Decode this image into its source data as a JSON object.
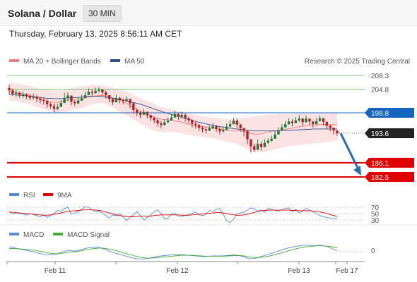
{
  "header": {
    "title": "Solana / Dollar",
    "timeframe": "30 MIN"
  },
  "datetime": "Thursday, February 13, 2025 8:56:11 AM CET",
  "colors": {
    "bollinger": "#f08080",
    "ma50": "#2c4f8c",
    "resistance": "#7fc97f",
    "pivot": "#1565c0",
    "support": "#e00000",
    "current": "#222222",
    "rsi": "#5b8bd6",
    "rsi_ma": "#e00000",
    "macd": "#5b8bd6",
    "macd_signal": "#44aa33",
    "arrow": "#2b6cb0"
  },
  "legend": {
    "items": [
      {
        "label": "MA 20 + Bollinger Bands",
        "color": "#f08080"
      },
      {
        "label": "MA 50",
        "color": "#2c4f8c"
      }
    ],
    "credit": "Research © 2025 Trading Central"
  },
  "rsi_legend": [
    {
      "label": "RSI",
      "color": "#5b8bd6"
    },
    {
      "label": "9MA",
      "color": "#e00000"
    }
  ],
  "macd_legend": [
    {
      "label": "MACD",
      "color": "#5b8bd6"
    },
    {
      "label": "MACD Signal",
      "color": "#44aa33"
    }
  ],
  "chart_data": [
    {
      "type": "candlestick",
      "title": "Solana / Dollar",
      "ylim": [
        180,
        210
      ],
      "x_tick_labels": [
        "Feb 11",
        "Feb 12",
        "Feb 13",
        "Feb 17"
      ],
      "close": [
        204.5,
        203.6,
        203.9,
        203.2,
        203.5,
        203.0,
        202.6,
        202.9,
        202.4,
        202.0,
        201.8,
        201.0,
        200.5,
        199.8,
        200.3,
        201.3,
        202.5,
        203.2,
        201.6,
        201.2,
        201.9,
        202.5,
        203.3,
        204.1,
        203.8,
        204.4,
        204.7,
        204.0,
        203.3,
        202.3,
        201.5,
        202.6,
        202.0,
        201.8,
        202.3,
        201.2,
        199.5,
        198.9,
        198.3,
        199.0,
        198.2,
        197.5,
        196.9,
        196.1,
        195.7,
        196.4,
        196.8,
        197.6,
        198.5,
        197.8,
        198.3,
        197.4,
        196.9,
        196.0,
        195.7,
        195.0,
        194.6,
        194.3,
        194.9,
        195.4,
        194.7,
        194.1,
        194.5,
        195.3,
        195.9,
        196.8,
        195.8,
        194.9,
        194.2,
        192.1,
        190.3,
        189.4,
        190.9,
        190.1,
        191.2,
        191.7,
        192.2,
        193.3,
        194.3,
        195.1,
        195.9,
        196.6,
        196.2,
        196.9,
        197.3,
        196.4,
        197.3,
        196.6,
        195.9,
        196.7,
        197.4,
        196.5,
        195.5,
        195.0,
        194.3,
        193.6
      ],
      "high": [
        206.0,
        205.0,
        204.6,
        204.2,
        204.2,
        203.8,
        203.6,
        203.7,
        203.3,
        202.9,
        202.6,
        202.2,
        201.4,
        201.2,
        201.1,
        202.1,
        203.9,
        204.0,
        203.0,
        202.0,
        202.7,
        203.4,
        204.2,
        205.0,
        204.8,
        205.2,
        205.3,
        204.8,
        204.5,
        203.2,
        202.6,
        203.4,
        202.9,
        202.5,
        203.0,
        202.4,
        201.5,
        199.9,
        199.2,
        199.8,
        199.2,
        198.4,
        197.8,
        197.4,
        196.7,
        197.1,
        197.6,
        198.4,
        199.4,
        198.8,
        199.1,
        198.6,
        197.8,
        197.2,
        196.5,
        196.0,
        195.4,
        195.2,
        195.6,
        196.3,
        195.7,
        195.2,
        195.1,
        196.1,
        196.9,
        197.5,
        197.3,
        196.0,
        195.0,
        194.3,
        191.6,
        191.0,
        192.0,
        191.5,
        192.1,
        192.4,
        193.0,
        194.2,
        195.1,
        195.9,
        196.7,
        197.4,
        197.2,
        197.7,
        198.2,
        197.5,
        198.1,
        197.4,
        196.7,
        197.5,
        198.1,
        197.5,
        196.6,
        195.7,
        195.0,
        194.4
      ],
      "low": [
        203.5,
        203.1,
        202.8,
        202.6,
        202.5,
        202.3,
        202.0,
        202.1,
        201.5,
        201.2,
        200.9,
        200.1,
        199.8,
        199.0,
        199.5,
        200.6,
        201.6,
        201.8,
        200.7,
        200.5,
        200.9,
        201.8,
        202.6,
        203.3,
        203.0,
        203.6,
        203.9,
        203.2,
        202.4,
        201.5,
        200.8,
        201.4,
        201.2,
        201.0,
        201.6,
        199.9,
        198.6,
        198.0,
        197.5,
        198.3,
        197.4,
        196.7,
        196.1,
        195.3,
        194.9,
        195.6,
        196.1,
        196.9,
        197.6,
        197.0,
        197.4,
        196.5,
        196.1,
        195.1,
        194.8,
        194.2,
        193.8,
        193.6,
        194.1,
        194.6,
        193.9,
        193.3,
        193.8,
        194.4,
        195.1,
        195.9,
        194.9,
        194.0,
        192.8,
        190.8,
        188.7,
        188.9,
        189.5,
        189.2,
        190.3,
        190.9,
        191.4,
        192.3,
        193.4,
        194.3,
        195.1,
        195.8,
        195.3,
        196.1,
        196.4,
        195.5,
        196.3,
        195.7,
        195.1,
        195.8,
        196.6,
        195.6,
        194.7,
        194.1,
        193.3,
        192.9
      ],
      "ma20": [
        204.2,
        204.1,
        204.0,
        203.8,
        203.6,
        203.4,
        203.2,
        202.9,
        202.6,
        202.3,
        202.0,
        201.8,
        201.6,
        201.5,
        201.5,
        201.6,
        201.8,
        202.0,
        202.1,
        202.2,
        202.3,
        202.4,
        202.6,
        202.8,
        203.0,
        203.1,
        203.2,
        203.2,
        203.1,
        202.9,
        202.6,
        202.3,
        202.0,
        201.6,
        201.2,
        200.7,
        200.2,
        199.7,
        199.2,
        198.8,
        198.4,
        198.0,
        197.7,
        197.4,
        197.2,
        197.1,
        197.0,
        196.9,
        196.8,
        196.6,
        196.4,
        196.1,
        195.9,
        195.7,
        195.5,
        195.4,
        195.3,
        195.2,
        195.1,
        194.9,
        194.8,
        194.6,
        194.5,
        194.4,
        194.3,
        194.3,
        194.3,
        194.2,
        194.1,
        193.9,
        193.6,
        193.4,
        193.4,
        193.5,
        193.7,
        193.9,
        194.1,
        194.2,
        194.3,
        194.4,
        194.6,
        194.8,
        194.9,
        195.1,
        195.3,
        195.4,
        195.5,
        195.6,
        195.6,
        195.7,
        195.8,
        195.8,
        195.9,
        195.8,
        195.8,
        195.7
      ],
      "bb_upper": [
        206.5,
        206.4,
        206.3,
        206.2,
        206.0,
        205.8,
        205.6,
        205.4,
        205.2,
        205.0,
        204.8,
        204.7,
        204.6,
        204.5,
        204.4,
        204.4,
        204.6,
        204.8,
        205.0,
        205.2,
        205.4,
        205.5,
        205.6,
        205.7,
        205.8,
        205.8,
        205.8,
        205.7,
        205.6,
        205.4,
        205.2,
        205.0,
        204.8,
        204.5,
        204.2,
        203.8,
        203.4,
        203.0,
        202.6,
        202.2,
        201.8,
        201.4,
        201.0,
        200.6,
        200.3,
        200.0,
        199.8,
        199.6,
        199.4,
        199.2,
        199.0,
        198.8,
        198.6,
        198.4,
        198.2,
        198.0,
        197.9,
        197.8,
        197.7,
        197.6,
        197.5,
        197.4,
        197.3,
        197.2,
        197.2,
        197.3,
        197.4,
        197.5,
        197.6,
        197.7,
        197.8,
        197.9,
        198.0,
        198.1,
        198.2,
        198.3,
        198.3,
        198.4,
        198.4,
        198.4,
        198.4,
        198.5,
        198.5,
        198.5,
        198.6,
        198.6,
        198.6,
        198.6,
        198.7,
        198.7,
        198.7,
        198.7,
        198.7,
        198.8,
        198.8,
        198.8
      ],
      "bb_lower": [
        201.9,
        201.8,
        201.7,
        201.5,
        201.3,
        201.1,
        200.9,
        200.6,
        200.3,
        200.0,
        199.7,
        199.4,
        199.2,
        199.0,
        198.9,
        198.9,
        199.0,
        199.2,
        199.4,
        199.6,
        199.8,
        200.0,
        200.3,
        200.6,
        200.9,
        201.1,
        201.2,
        201.2,
        201.0,
        200.6,
        200.1,
        199.6,
        199.1,
        198.6,
        198.1,
        197.6,
        197.1,
        196.6,
        196.0,
        195.5,
        195.0,
        194.6,
        194.3,
        194.1,
        193.9,
        193.9,
        193.9,
        193.9,
        193.9,
        193.8,
        193.6,
        193.4,
        193.2,
        193.0,
        192.9,
        192.8,
        192.7,
        192.6,
        192.5,
        192.3,
        192.1,
        191.9,
        191.7,
        191.5,
        191.3,
        191.1,
        190.8,
        190.4,
        190.0,
        189.5,
        189.0,
        188.8,
        188.7,
        188.8,
        188.9,
        189.1,
        189.3,
        189.5,
        189.7,
        189.9,
        190.1,
        190.3,
        190.4,
        190.5,
        190.6,
        190.7,
        190.8,
        190.9,
        191.0,
        191.1,
        191.2,
        191.3,
        191.4,
        191.5,
        191.6,
        191.7
      ],
      "ma50": [
        203.5,
        203.4,
        203.3,
        203.3,
        203.2,
        203.1,
        203.0,
        202.9,
        202.8,
        202.7,
        202.6,
        202.5,
        202.5,
        202.4,
        202.4,
        202.4,
        202.5,
        202.6,
        202.6,
        202.7,
        202.7,
        202.8,
        202.9,
        203.0,
        203.0,
        203.0,
        203.0,
        202.9,
        202.8,
        202.7,
        202.5,
        202.4,
        202.2,
        202.0,
        201.8,
        201.6,
        201.4,
        201.2,
        201.0,
        200.7,
        200.4,
        200.1,
        199.8,
        199.5,
        199.2,
        198.9,
        198.6,
        198.4,
        198.1,
        197.9,
        197.6,
        197.4,
        197.1,
        196.9,
        196.6,
        196.4,
        196.2,
        196.0,
        195.8,
        195.6,
        195.5,
        195.3,
        195.2,
        195.0,
        194.9,
        194.8,
        194.7,
        194.6,
        194.5,
        194.4,
        194.3,
        194.2,
        194.2,
        194.2,
        194.2,
        194.2,
        194.2,
        194.2,
        194.2,
        194.3,
        194.3,
        194.3,
        194.4,
        194.4,
        194.5,
        194.5,
        194.6,
        194.6,
        194.7,
        194.7,
        194.7,
        194.7,
        194.7,
        194.7,
        194.7,
        194.7
      ],
      "levels": [
        {
          "label": "208.3",
          "value": 208.3,
          "kind": "resistance"
        },
        {
          "label": "204.8",
          "value": 204.8,
          "kind": "resistance"
        },
        {
          "label": "198.8",
          "value": 198.8,
          "kind": "pivot"
        },
        {
          "label": "193.6",
          "value": 193.6,
          "kind": "current"
        },
        {
          "label": "186.1",
          "value": 186.1,
          "kind": "support"
        },
        {
          "label": "182.5",
          "value": 182.5,
          "kind": "support"
        }
      ],
      "forecast_arrow": {
        "from": 193.6,
        "to": 182.5
      }
    },
    {
      "type": "line",
      "series": [
        {
          "name": "RSI",
          "values": [
            58,
            48,
            52,
            51,
            49,
            45,
            50,
            47,
            44,
            40,
            46,
            38,
            44,
            50,
            60,
            57,
            66,
            70,
            48,
            52,
            56,
            64,
            72,
            70,
            62,
            57,
            58,
            52,
            44,
            36,
            46,
            43,
            50,
            40,
            28,
            38,
            46,
            56,
            44,
            30,
            38,
            45,
            56,
            62,
            50,
            34,
            36,
            48,
            50,
            42,
            41,
            44,
            47,
            51,
            55,
            46,
            44,
            48,
            60,
            56,
            64,
            66,
            48,
            28,
            22,
            33,
            50,
            52,
            54,
            62,
            68,
            65,
            58,
            62,
            54,
            66,
            64,
            60,
            58,
            63,
            66,
            68,
            56,
            64,
            52,
            58,
            66,
            62,
            56,
            50,
            44,
            40,
            38,
            36,
            34,
            33
          ]
        },
        {
          "name": "9MA",
          "values": [
            55,
            54,
            53,
            52,
            51,
            50,
            49,
            48,
            47,
            46,
            45,
            45,
            46,
            48,
            50,
            52,
            55,
            57,
            58,
            59,
            60,
            61,
            62,
            62,
            62,
            61,
            60,
            58,
            55,
            52,
            49,
            46,
            44,
            42,
            41,
            40,
            40,
            41,
            42,
            42,
            41,
            42,
            44,
            45,
            46,
            46,
            46,
            46,
            46,
            46,
            45,
            45,
            45,
            46,
            47,
            48,
            49,
            50,
            51,
            52,
            53,
            53,
            52,
            50,
            48,
            46,
            45,
            45,
            46,
            48,
            51,
            54,
            57,
            59,
            60,
            61,
            61,
            61,
            61,
            61,
            61,
            61,
            60,
            60,
            59,
            59,
            59,
            59,
            58,
            57,
            55,
            53,
            50,
            47,
            44,
            41
          ]
        }
      ],
      "ylim": [
        20,
        80
      ],
      "y_tick_labels": [
        "70",
        "50",
        "30"
      ]
    },
    {
      "type": "line",
      "series": [
        {
          "name": "MACD",
          "values": [
            1.5,
            1.4,
            1.0,
            0.8,
            0.6,
            0.4,
            0.2,
            0.0,
            -0.3,
            -0.6,
            -0.8,
            -1.0,
            -1.0,
            -0.9,
            -0.6,
            -0.3,
            0.1,
            0.4,
            0.3,
            0.2,
            0.4,
            0.7,
            1.0,
            1.2,
            1.3,
            1.4,
            1.3,
            1.0,
            0.6,
            0.2,
            -0.2,
            -0.5,
            -0.8,
            -1.1,
            -1.4,
            -1.7,
            -2.0,
            -2.2,
            -2.3,
            -2.3,
            -2.1,
            -1.9,
            -1.7,
            -1.5,
            -1.3,
            -1.2,
            -1.1,
            -1.0,
            -0.9,
            -0.9,
            -0.9,
            -1.0,
            -1.1,
            -1.2,
            -1.3,
            -1.4,
            -1.5,
            -1.5,
            -1.4,
            -1.3,
            -1.3,
            -1.3,
            -1.3,
            -1.2,
            -1.1,
            -1.0,
            -1.1,
            -1.3,
            -1.6,
            -2.0,
            -2.2,
            -2.1,
            -1.8,
            -1.5,
            -1.2,
            -0.8,
            -0.5,
            -0.2,
            0.2,
            0.6,
            0.9,
            1.2,
            1.4,
            1.6,
            1.8,
            1.9,
            2.0,
            2.0,
            1.9,
            1.9,
            2.0,
            1.9,
            1.6,
            1.2,
            0.7,
            0.3
          ]
        },
        {
          "name": "MACD Signal",
          "values": [
            1.0,
            1.0,
            1.0,
            0.9,
            0.8,
            0.7,
            0.6,
            0.5,
            0.3,
            0.1,
            -0.1,
            -0.3,
            -0.5,
            -0.6,
            -0.6,
            -0.5,
            -0.4,
            -0.2,
            -0.1,
            0.0,
            0.1,
            0.3,
            0.5,
            0.7,
            0.9,
            1.0,
            1.1,
            1.1,
            1.0,
            0.8,
            0.6,
            0.3,
            0.0,
            -0.3,
            -0.6,
            -0.9,
            -1.2,
            -1.5,
            -1.7,
            -1.9,
            -2.0,
            -2.0,
            -1.9,
            -1.8,
            -1.7,
            -1.6,
            -1.5,
            -1.4,
            -1.3,
            -1.2,
            -1.1,
            -1.1,
            -1.1,
            -1.1,
            -1.2,
            -1.3,
            -1.3,
            -1.4,
            -1.4,
            -1.4,
            -1.4,
            -1.4,
            -1.4,
            -1.3,
            -1.3,
            -1.2,
            -1.2,
            -1.2,
            -1.3,
            -1.5,
            -1.7,
            -1.8,
            -1.8,
            -1.7,
            -1.6,
            -1.4,
            -1.2,
            -0.9,
            -0.6,
            -0.3,
            0.0,
            0.3,
            0.6,
            0.9,
            1.1,
            1.3,
            1.5,
            1.6,
            1.7,
            1.8,
            1.8,
            1.8,
            1.7,
            1.6,
            1.4,
            1.2
          ]
        }
      ],
      "ylim": [
        -3,
        3
      ],
      "y_tick_labels": [
        "0"
      ]
    }
  ]
}
